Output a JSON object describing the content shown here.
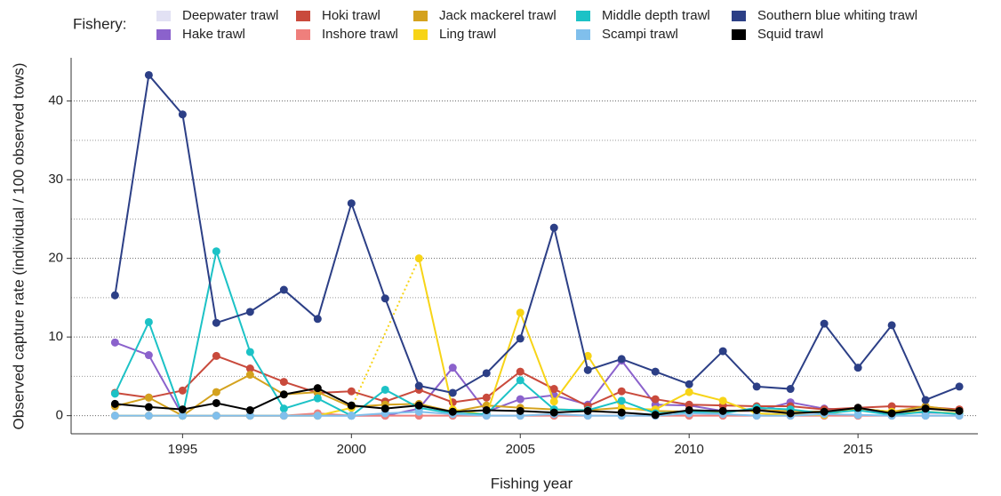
{
  "chart_data": {
    "type": "line",
    "xlabel": "Fishing year",
    "ylabel": "Observed capture rate (individual / 100 observed tows)",
    "legend_title": "Fishery:",
    "x": [
      1993,
      1994,
      1995,
      1996,
      1997,
      1998,
      1999,
      2000,
      2001,
      2002,
      2003,
      2004,
      2005,
      2006,
      2007,
      2008,
      2009,
      2010,
      2011,
      2012,
      2013,
      2014,
      2015,
      2016,
      2017,
      2018
    ],
    "xlim": [
      1991.7,
      2018.55
    ],
    "xticks": [
      1995,
      2000,
      2005,
      2010,
      2015
    ],
    "ylim": [
      -2.3,
      45.5
    ],
    "yticks": [
      0,
      10,
      20,
      30,
      40
    ],
    "yminor_grid": [
      5,
      15,
      25,
      35
    ],
    "grid": true,
    "legend_position": "top",
    "series": [
      {
        "name": "Deepwater trawl",
        "color": "#e2e1f4",
        "values": [
          0,
          0,
          0,
          0,
          0,
          0,
          0,
          0,
          0,
          0,
          0,
          0,
          0,
          0,
          0,
          0,
          0,
          0,
          0,
          0,
          0,
          0,
          0,
          0,
          0,
          0
        ]
      },
      {
        "name": "Hake trawl",
        "color": "#8b62cc",
        "values": [
          9.3,
          7.7,
          0,
          0,
          0,
          0,
          0,
          0,
          0,
          0.9,
          6.1,
          0.5,
          2.1,
          2.6,
          1.4,
          7.0,
          1.4,
          1.3,
          0.6,
          0.6,
          1.7,
          0.9,
          0.7,
          0.4,
          0.4,
          0.3
        ]
      },
      {
        "name": "Hoki trawl",
        "color": "#c94a3c",
        "values": [
          2.9,
          2.3,
          3.2,
          7.6,
          6.0,
          4.3,
          2.9,
          3.1,
          1.8,
          3.3,
          1.7,
          2.3,
          5.6,
          3.4,
          1.2,
          3.1,
          2.1,
          1.4,
          1.3,
          1.2,
          1.2,
          0.8,
          1.0,
          1.2,
          1.1,
          0.8
        ]
      },
      {
        "name": "Inshore trawl",
        "color": "#ef7f7c",
        "values": [
          0,
          0,
          0,
          0,
          0,
          0,
          0.3,
          0,
          0,
          0,
          0,
          0,
          0,
          0,
          0,
          0,
          0,
          0,
          0,
          0,
          0,
          0,
          0,
          0,
          0,
          0
        ]
      },
      {
        "name": "Jack mackerel trawl",
        "color": "#d4a21e",
        "values": [
          1.2,
          2.3,
          0,
          3.0,
          5.2,
          2.7,
          3.0,
          1.1,
          1.4,
          1.5,
          0.5,
          1.3,
          1.0,
          0.8,
          0.7,
          1.0,
          0.6,
          0.5,
          0.5,
          0.7,
          0.6,
          0.5,
          0.9,
          0.5,
          1.2,
          0.6
        ]
      },
      {
        "name": "Ling trawl",
        "color": "#f7d417",
        "values": [
          0,
          0,
          0,
          0,
          0,
          0,
          0,
          1.0,
          null,
          20.0,
          0.8,
          0.1,
          13.1,
          1.8,
          7.6,
          0.9,
          0.8,
          3.0,
          1.9,
          0.3,
          0.1,
          0.1,
          0.9,
          0.5,
          0.5,
          0.3
        ]
      },
      {
        "name": "Middle depth trawl",
        "color": "#1cc2c6",
        "values": [
          2.8,
          11.9,
          0,
          20.9,
          8.1,
          0.9,
          2.2,
          0,
          3.3,
          1.0,
          0.3,
          0.2,
          4.5,
          0.8,
          0.7,
          1.9,
          0.3,
          0.5,
          0.3,
          1.0,
          0.8,
          0.3,
          0.7,
          0.1,
          0.5,
          0.2
        ]
      },
      {
        "name": "Scampi trawl",
        "color": "#80bfec",
        "values": [
          0,
          0,
          0,
          0,
          0,
          0,
          0,
          0,
          0.3,
          0.5,
          0.2,
          0,
          0,
          0.2,
          0,
          0,
          0,
          0.3,
          0.2,
          0,
          0,
          0.2,
          0.1,
          0,
          0,
          0
        ]
      },
      {
        "name": "Southern blue whiting trawl",
        "color": "#2c3f86",
        "values": [
          15.3,
          43.3,
          38.3,
          11.8,
          13.2,
          16.0,
          12.3,
          27.0,
          14.9,
          3.8,
          2.9,
          5.4,
          9.8,
          23.9,
          5.8,
          7.2,
          5.6,
          4.0,
          8.2,
          3.7,
          3.4,
          11.7,
          6.1,
          11.5,
          2.0,
          3.7
        ]
      },
      {
        "name": "Squid trawl",
        "color": "#000000",
        "values": [
          1.5,
          1.1,
          0.8,
          1.6,
          0.7,
          2.7,
          3.5,
          1.3,
          0.9,
          1.3,
          0.5,
          0.7,
          0.6,
          0.4,
          0.6,
          0.4,
          0.1,
          0.7,
          0.6,
          0.7,
          0.3,
          0.5,
          1.0,
          0.3,
          0.9,
          0.6
        ]
      }
    ]
  }
}
